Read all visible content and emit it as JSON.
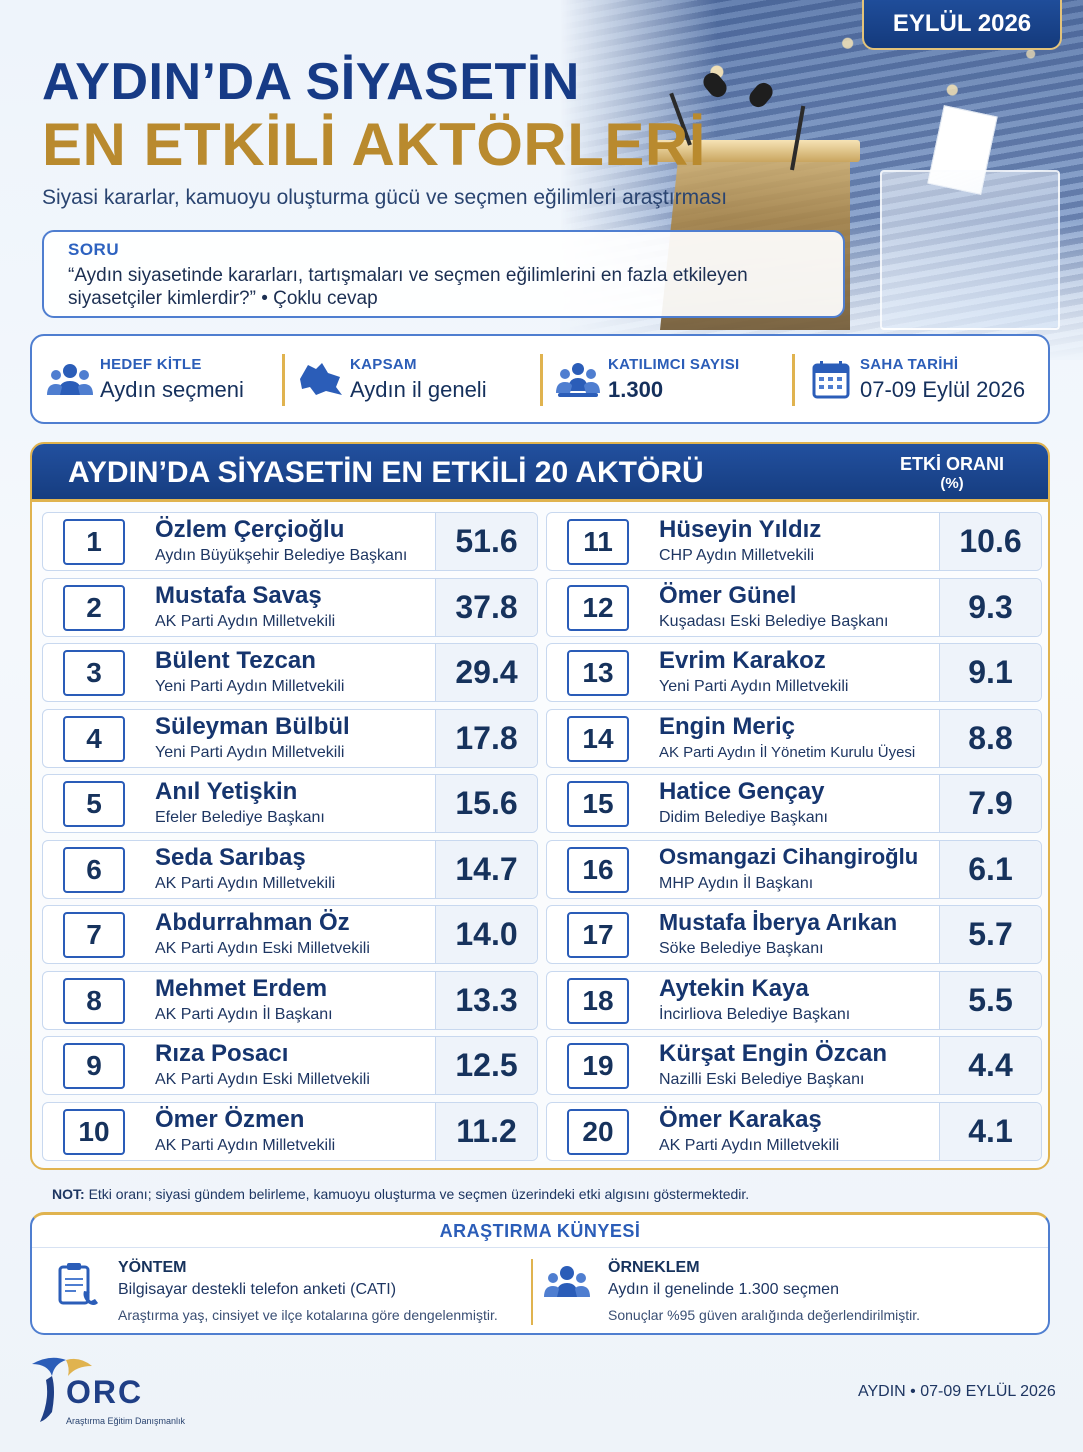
{
  "date_badge": "EYLÜL 2026",
  "title": {
    "line1": "AYDIN’DA SİYASETİN",
    "line2": "EN ETKİLİ AKTÖRLERİ"
  },
  "subtitle": "Siyasi kararlar, kamuoyu oluşturma gücü ve seçmen eğilimleri araştırması",
  "question": {
    "label": "SORU",
    "text_line1": "“Aydın siyasetinde kararları, tartışmaları ve seçmen eğilimlerini en fazla etkileyen",
    "text_line2": "siyasetçiler kimlerdir?” • Çoklu cevap"
  },
  "info": [
    {
      "head": "HEDEF KİTLE",
      "value": "Aydın seçmeni",
      "icon": "people-icon"
    },
    {
      "head": "KAPSAM",
      "value": "Aydın il geneli",
      "icon": "map-icon"
    },
    {
      "head": "KATILIMCI SAYISI",
      "value": "1.300",
      "icon": "group-icon"
    },
    {
      "head": "SAHA TARİHİ",
      "value": "07-09 Eylül 2026",
      "icon": "calendar-icon"
    }
  ],
  "table": {
    "title": "AYDIN’DA SİYASETİN EN ETKİLİ 20 AKTÖRÜ",
    "col_head_1": "ETKİ ORANI",
    "col_head_2": "(%)",
    "left": [
      {
        "rank": "1",
        "name": "Özlem Çerçioğlu",
        "role": "Aydın Büyükşehir Belediye Başkanı",
        "value": "51.6"
      },
      {
        "rank": "2",
        "name": "Mustafa Savaş",
        "role": "AK Parti Aydın Milletvekili",
        "value": "37.8"
      },
      {
        "rank": "3",
        "name": "Bülent Tezcan",
        "role": "Yeni Parti Aydın Milletvekili",
        "value": "29.4"
      },
      {
        "rank": "4",
        "name": "Süleyman Bülbül",
        "role": "Yeni Parti Aydın Milletvekili",
        "value": "17.8"
      },
      {
        "rank": "5",
        "name": "Anıl Yetişkin",
        "role": "Efeler Belediye Başkanı",
        "value": "15.6"
      },
      {
        "rank": "6",
        "name": "Seda Sarıbaş",
        "role": "AK Parti Aydın Milletvekili",
        "value": "14.7"
      },
      {
        "rank": "7",
        "name": "Abdurrahman Öz",
        "role": "AK Parti Aydın Eski Milletvekili",
        "value": "14.0"
      },
      {
        "rank": "8",
        "name": "Mehmet Erdem",
        "role": "AK Parti Aydın İl Başkanı",
        "value": "13.3"
      },
      {
        "rank": "9",
        "name": "Rıza Posacı",
        "role": "AK Parti Aydın Eski Milletvekili",
        "value": "12.5"
      },
      {
        "rank": "10",
        "name": "Ömer Özmen",
        "role": "AK Parti Aydın Milletvekili",
        "value": "11.2"
      }
    ],
    "right": [
      {
        "rank": "11",
        "name": "Hüseyin Yıldız",
        "role": "CHP Aydın Milletvekili",
        "value": "10.6"
      },
      {
        "rank": "12",
        "name": "Ömer Günel",
        "role": "Kuşadası Eski Belediye Başkanı",
        "value": "9.3"
      },
      {
        "rank": "13",
        "name": "Evrim Karakoz",
        "role": "Yeni Parti Aydın Milletvekili",
        "value": "9.1"
      },
      {
        "rank": "14",
        "name": "Engin Meriç",
        "role": "AK Parti Aydın İl Yönetim Kurulu Üyesi",
        "value": "8.8"
      },
      {
        "rank": "15",
        "name": "Hatice Gençay",
        "role": "Didim Belediye Başkanı",
        "value": "7.9"
      },
      {
        "rank": "16",
        "name": "Osmangazi Cihangiroğlu",
        "role": "MHP Aydın İl Başkanı",
        "value": "6.1"
      },
      {
        "rank": "17",
        "name": "Mustafa İberya Arıkan",
        "role": "Söke Belediye Başkanı",
        "value": "5.7"
      },
      {
        "rank": "18",
        "name": "Aytekin Kaya",
        "role": "İncirliova Belediye Başkanı",
        "value": "5.5"
      },
      {
        "rank": "19",
        "name": "Kürşat Engin Özcan",
        "role": "Nazilli Eski Belediye Başkanı",
        "value": "4.4"
      },
      {
        "rank": "20",
        "name": "Ömer Karakaş",
        "role": "AK Parti Aydın Milletvekili",
        "value": "4.1"
      }
    ]
  },
  "note": {
    "label": "NOT:",
    "text": "Etki oranı; siyasi gündem belirleme, kamuoyu oluşturma ve seçmen üzerindeki etki algısını göstermektedir."
  },
  "kunye": {
    "title": "ARAŞTIRMA KÜNYESİ",
    "method": {
      "head": "YÖNTEM",
      "line1": "Bilgisayar destekli telefon anketi (CATI)",
      "line2": "Araştırma yaş, cinsiyet ve ilçe kotalarına göre dengelenmiştir."
    },
    "sample": {
      "head": "ÖRNEKLEM",
      "line1": "Aydın il genelinde 1.300 seçmen",
      "line2": "Sonuçlar %95 güven aralığında değerlendirilmiştir."
    }
  },
  "logo": {
    "text": "ORC",
    "sub": "Araştırma Eğitim Danışmanlık"
  },
  "footer": "AYDIN • 07-09 EYLÜL 2026",
  "colors": {
    "navy": "#16325c",
    "blue": "#2b5db8",
    "gold": "#e0b34f",
    "title_gold": "#b98a2e"
  }
}
